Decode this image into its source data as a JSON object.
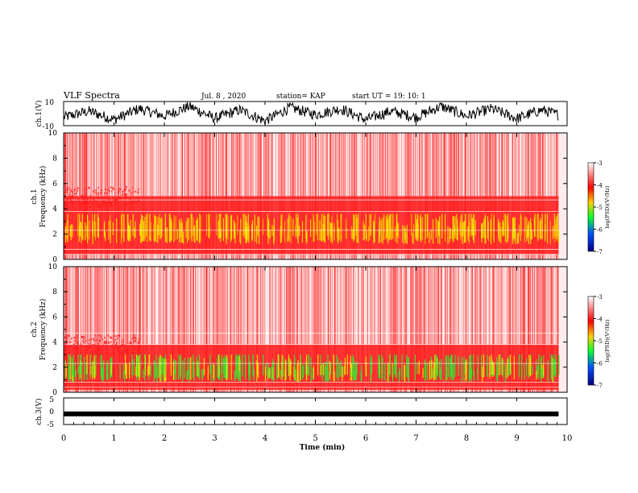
{
  "header": {
    "title": "VLF Spectra",
    "date": "Jul. 8 , 2020",
    "station": "station= KAP",
    "start": "start UT = 19: 10: 1"
  },
  "colors": {
    "background": "#ffffff",
    "axis": "#000000",
    "noise_red": "#ff1a1a",
    "band_yellow": "#f2e600",
    "band_green": "#33e633"
  },
  "chart_data": [
    {
      "type": "line",
      "panel": "waveform-ch1",
      "ylabel": "ch.1(V)",
      "ylim": [
        -10,
        10
      ],
      "yticks": [
        "10",
        "-10"
      ],
      "x": [
        0.0,
        0.5,
        1.0,
        1.5,
        2.0,
        2.5,
        3.0,
        3.5,
        4.0,
        4.5,
        5.0,
        5.5,
        6.0,
        6.5,
        7.0,
        7.5,
        8.0,
        8.5,
        9.0,
        9.5,
        9.83
      ],
      "y": [
        -3,
        2,
        -5,
        4,
        -2,
        6,
        -4,
        3,
        -6,
        5,
        -1,
        4,
        -5,
        2,
        -3,
        6,
        -2,
        4,
        -4,
        3,
        -1
      ]
    },
    {
      "type": "heatmap",
      "panel": "spectrogram-ch1",
      "ylabel_line1": "ch.1",
      "ylabel_line2": "Frequency (kHz)",
      "ylim": [
        0,
        10
      ],
      "yticks": [
        "0",
        "2",
        "4",
        "6",
        "8",
        "10"
      ],
      "colorbar": {
        "label": "log(PSD)(V²/Hz)",
        "range": [
          -7,
          -3
        ],
        "ticks": [
          "-3",
          "-4",
          "-5",
          "-6",
          "-7"
        ]
      },
      "bands": [
        {
          "from_khz": 0.4,
          "to_khz": 5.0,
          "level": -4.0
        },
        {
          "from_khz": 1.2,
          "to_khz": 3.6,
          "level": -4.6
        }
      ]
    },
    {
      "type": "heatmap",
      "panel": "spectrogram-ch2",
      "ylabel_line1": "ch.2",
      "ylabel_line2": "Frequency (kHz)",
      "ylim": [
        0,
        10
      ],
      "yticks": [
        "0",
        "2",
        "4",
        "6",
        "8",
        "10"
      ],
      "colorbar": {
        "label": "log(PSD)(V²/Hz)",
        "range": [
          -7,
          -3
        ],
        "ticks": [
          "-3",
          "-4",
          "-5",
          "-6",
          "-7"
        ]
      },
      "bands": [
        {
          "from_khz": 0.2,
          "to_khz": 3.8,
          "level": -4.0
        },
        {
          "from_khz": 0.8,
          "to_khz": 3.0,
          "level": -5.0
        }
      ]
    },
    {
      "type": "line",
      "panel": "waveform-ch3",
      "ylabel": "ch.3(V)",
      "ylim": [
        -5,
        5
      ],
      "yticks": [
        "5",
        "0",
        "-5"
      ],
      "x": [
        0.0,
        9.83
      ],
      "y": [
        -1,
        -1
      ]
    }
  ],
  "time_axis": {
    "label": "Time (min)",
    "range": [
      0,
      10
    ],
    "ticks": [
      "0",
      "1",
      "2",
      "3",
      "4",
      "5",
      "6",
      "7",
      "8",
      "9",
      "10"
    ]
  }
}
